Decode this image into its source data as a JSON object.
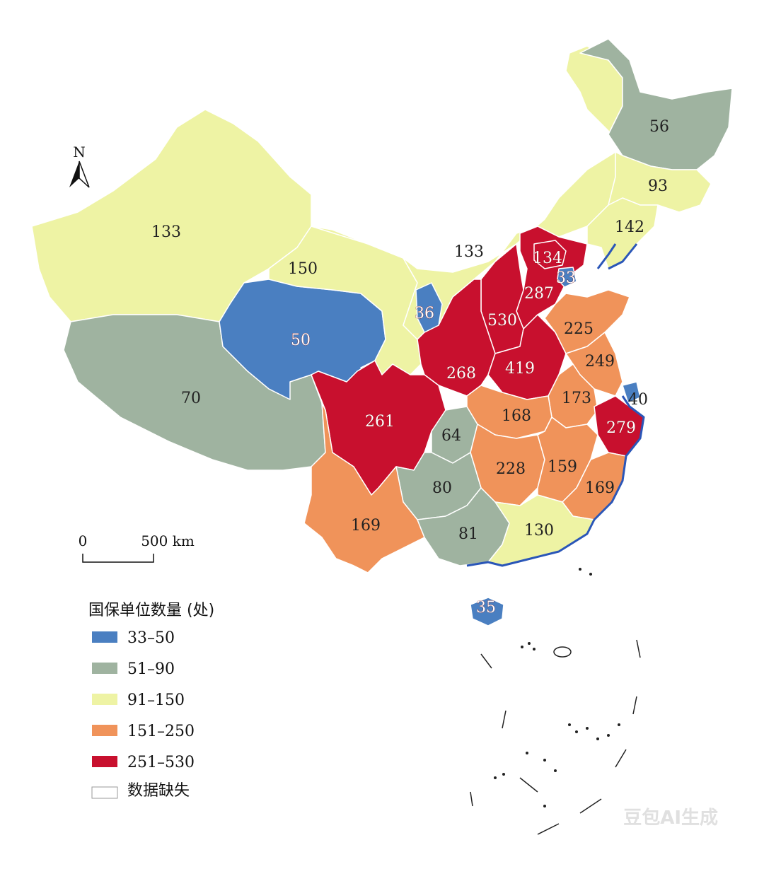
{
  "north_label": "N",
  "scale": {
    "zero": "0",
    "distance": "500 km"
  },
  "legend": {
    "title": "国保单位数量 (处)",
    "items": [
      {
        "label": "33–50",
        "color": "#4a7fc1"
      },
      {
        "label": "51–90",
        "color": "#9fb3a0"
      },
      {
        "label": "91–150",
        "color": "#eef3a4"
      },
      {
        "label": "151–250",
        "color": "#f0935a"
      },
      {
        "label": "251–530",
        "color": "#c8102e"
      },
      {
        "label": "数据缺失",
        "color": "#ffffff"
      }
    ]
  },
  "regions": [
    {
      "id": "xinjiang",
      "value": "133",
      "class": "91–150"
    },
    {
      "id": "tibet",
      "value": "70",
      "class": "51–90"
    },
    {
      "id": "qinghai",
      "value": "50",
      "class": "33–50"
    },
    {
      "id": "gansu",
      "value": "150",
      "class": "91–150"
    },
    {
      "id": "inner-mongolia",
      "value": "133",
      "class": "91–150"
    },
    {
      "id": "heilongjiang",
      "value": "56",
      "class": "51–90"
    },
    {
      "id": "jilin",
      "value": "93",
      "class": "91–150"
    },
    {
      "id": "liaoning",
      "value": "142",
      "class": "91–150"
    },
    {
      "id": "beijing",
      "value": "134",
      "class": "91–150"
    },
    {
      "id": "tianjin",
      "value": "33",
      "class": "33–50"
    },
    {
      "id": "ningxia",
      "value": "36",
      "class": "33–50"
    },
    {
      "id": "hebei",
      "value": "287",
      "class": "251–530"
    },
    {
      "id": "shanxi",
      "value": "530",
      "class": "251–530"
    },
    {
      "id": "shandong",
      "value": "225",
      "class": "151–250"
    },
    {
      "id": "shaanxi",
      "value": "268",
      "class": "251–530"
    },
    {
      "id": "henan",
      "value": "419",
      "class": "251–530"
    },
    {
      "id": "jiangsu",
      "value": "249",
      "class": "151–250"
    },
    {
      "id": "shanghai",
      "value": "40",
      "class": "33–50"
    },
    {
      "id": "sichuan",
      "value": "261",
      "class": "251–530"
    },
    {
      "id": "chongqing",
      "value": "64",
      "class": "51–90"
    },
    {
      "id": "hubei",
      "value": "168",
      "class": "151–250"
    },
    {
      "id": "anhui",
      "value": "173",
      "class": "151–250"
    },
    {
      "id": "zhejiang",
      "value": "279",
      "class": "251–530"
    },
    {
      "id": "hunan",
      "value": "228",
      "class": "151–250"
    },
    {
      "id": "jiangxi",
      "value": "159",
      "class": "151–250"
    },
    {
      "id": "fujian",
      "value": "169",
      "class": "151–250"
    },
    {
      "id": "guizhou",
      "value": "80",
      "class": "51–90"
    },
    {
      "id": "yunnan",
      "value": "169",
      "class": "151–250"
    },
    {
      "id": "guangxi",
      "value": "81",
      "class": "51–90"
    },
    {
      "id": "guangdong",
      "value": "130",
      "class": "91–150"
    },
    {
      "id": "hainan",
      "value": "35",
      "class": "33–50"
    }
  ],
  "watermark": "豆包AI生成"
}
